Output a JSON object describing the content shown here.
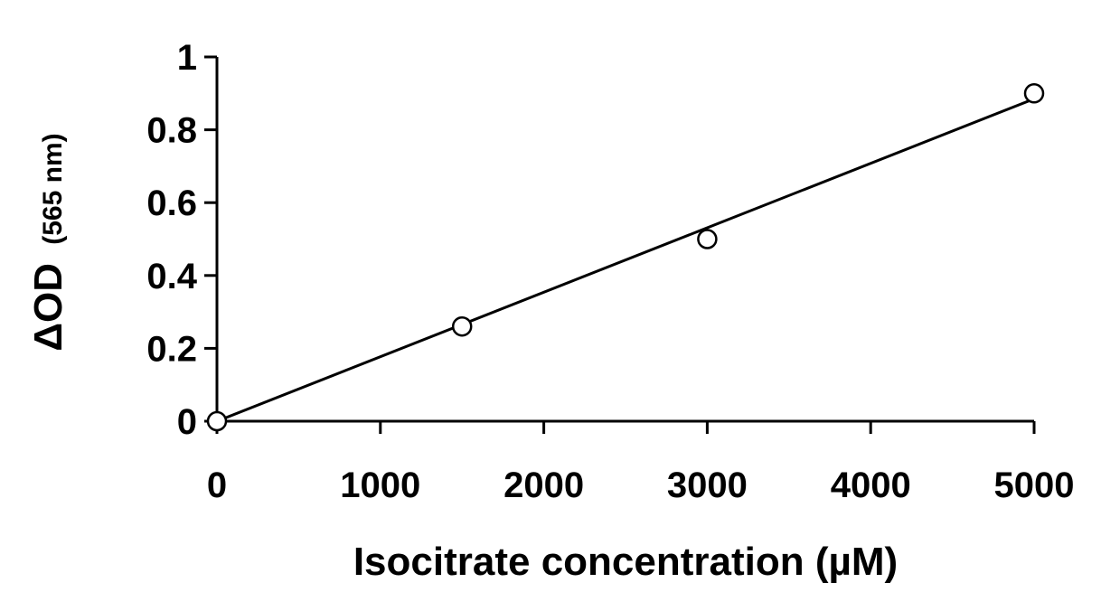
{
  "chart_data": {
    "type": "scatter",
    "x_axis": {
      "label": "Isocitrate concentration (µM)",
      "min": 0,
      "max": 5000,
      "ticks": [
        "0",
        "1000",
        "2000",
        "3000",
        "4000",
        "5000"
      ]
    },
    "y_axis": {
      "label_main": "ΔOD",
      "label_sub": "(565 nm)",
      "min": 0,
      "max": 1,
      "ticks": [
        "0",
        "0.2",
        "0.4",
        "0.6",
        "0.8",
        "1"
      ]
    },
    "series": [
      {
        "points": [
          {
            "x": 0,
            "y": 0
          },
          {
            "x": 1500,
            "y": 0.26
          },
          {
            "x": 3000,
            "y": 0.5
          },
          {
            "x": 5000,
            "y": 0.9
          }
        ],
        "marker": "open-circle",
        "color": "#000000"
      }
    ],
    "trendline": {
      "type": "linear",
      "from": {
        "x": 0,
        "y": 0
      },
      "to": {
        "x": 5000,
        "y": 0.885
      }
    },
    "grid": false,
    "legend": "none"
  }
}
